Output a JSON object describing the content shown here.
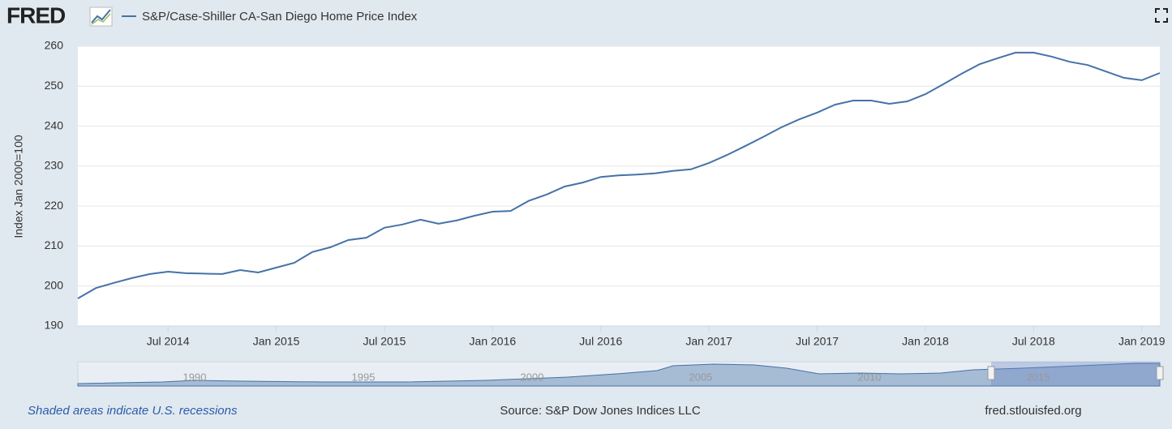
{
  "chart_data": {
    "type": "line",
    "logo": "FRED",
    "ylabel": "Index Jan 2000=100",
    "footer_left": "Shaded areas indicate U.S. recessions",
    "source": "Source: S&P Dow Jones Indices LLC",
    "site": "fred.stlouisfed.org",
    "x": [
      "2014-02",
      "2014-03",
      "2014-04",
      "2014-05",
      "2014-06",
      "2014-07",
      "2014-08",
      "2014-09",
      "2014-10",
      "2014-11",
      "2014-12",
      "2015-01",
      "2015-02",
      "2015-03",
      "2015-04",
      "2015-05",
      "2015-06",
      "2015-07",
      "2015-08",
      "2015-09",
      "2015-10",
      "2015-11",
      "2015-12",
      "2016-01",
      "2016-02",
      "2016-03",
      "2016-04",
      "2016-05",
      "2016-06",
      "2016-07",
      "2016-08",
      "2016-09",
      "2016-10",
      "2016-11",
      "2016-12",
      "2017-01",
      "2017-02",
      "2017-03",
      "2017-04",
      "2017-05",
      "2017-06",
      "2017-07",
      "2017-08",
      "2017-09",
      "2017-10",
      "2017-11",
      "2017-12",
      "2018-01",
      "2018-02",
      "2018-03",
      "2018-04",
      "2018-05",
      "2018-06",
      "2018-07",
      "2018-08",
      "2018-09",
      "2018-10",
      "2018-11",
      "2018-12",
      "2019-01",
      "2019-02"
    ],
    "series": [
      {
        "name": "S&P/Case-Shiller CA-San Diego Home Price Index",
        "color": "#4572a7",
        "values": [
          196.9,
          199.5,
          200.8,
          202.0,
          203.0,
          203.6,
          203.2,
          203.1,
          203.0,
          204.0,
          203.4,
          204.6,
          205.8,
          208.5,
          209.7,
          211.5,
          212.1,
          214.6,
          215.4,
          216.6,
          215.6,
          216.4,
          217.6,
          218.6,
          218.8,
          221.3,
          222.9,
          224.9,
          225.9,
          227.3,
          227.7,
          227.9,
          228.2,
          228.8,
          229.2,
          230.8,
          232.8,
          235.0,
          237.3,
          239.7,
          241.7,
          243.4,
          245.4,
          246.4,
          246.4,
          245.6,
          246.2,
          248.0,
          250.5,
          253.1,
          255.5,
          257.0,
          258.4,
          258.4,
          257.4,
          256.1,
          255.3,
          253.7,
          252.1,
          251.5,
          253.3
        ]
      }
    ],
    "xlim": [
      "2014-02",
      "2019-02"
    ],
    "xticks": [
      {
        "value": "2014-07",
        "label": "Jul 2014"
      },
      {
        "value": "2015-01",
        "label": "Jan 2015"
      },
      {
        "value": "2015-07",
        "label": "Jul 2015"
      },
      {
        "value": "2016-01",
        "label": "Jan 2016"
      },
      {
        "value": "2016-07",
        "label": "Jul 2016"
      },
      {
        "value": "2017-01",
        "label": "Jan 2017"
      },
      {
        "value": "2017-07",
        "label": "Jul 2017"
      },
      {
        "value": "2018-01",
        "label": "Jan 2018"
      },
      {
        "value": "2018-07",
        "label": "Jul 2018"
      },
      {
        "value": "2019-01",
        "label": "Jan 2019"
      }
    ],
    "ylim": [
      190,
      260
    ],
    "yticks": [
      190,
      200,
      210,
      220,
      230,
      240,
      250,
      260
    ],
    "grid": true,
    "navigator_labels": [
      "1990",
      "1995",
      "2000",
      "2005",
      "2010",
      "2015"
    ]
  }
}
